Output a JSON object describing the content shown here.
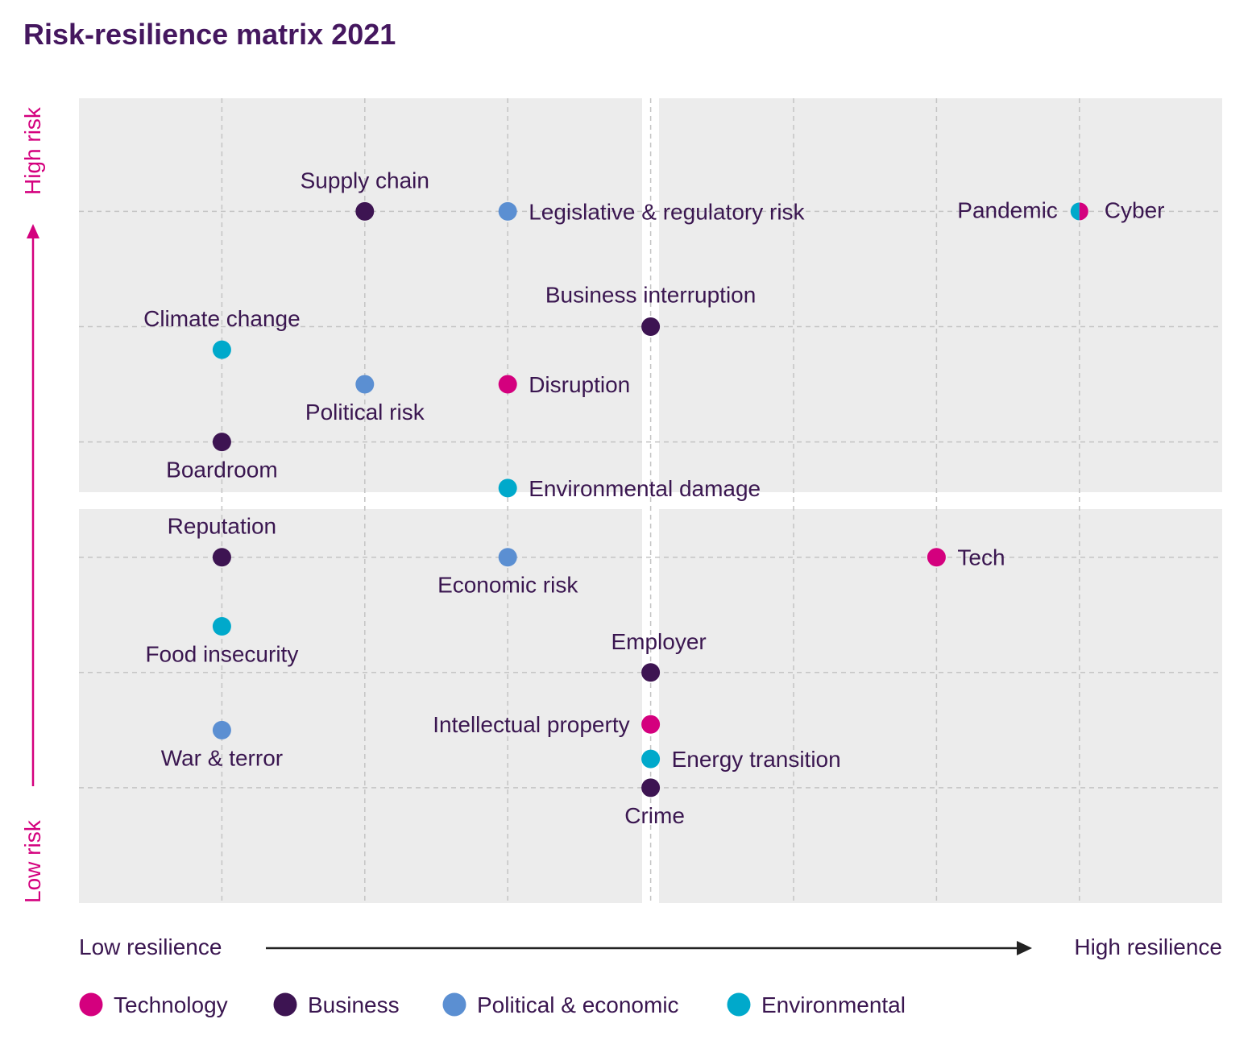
{
  "chart_data": {
    "type": "scatter",
    "title": "Risk-resilience matrix 2021",
    "xlabel_low": "Low resilience",
    "xlabel_high": "High resilience",
    "ylabel_low": "Low risk",
    "ylabel_high": "High risk",
    "xlim": [
      0,
      8
    ],
    "ylim": [
      0,
      7
    ],
    "grid": true,
    "legend_placement": "bottom",
    "colors": {
      "Technology": "#d4007e",
      "Business": "#3d1452",
      "Political & economic": "#5b8fd2",
      "Environmental": "#00a9cb"
    },
    "legend": [
      "Technology",
      "Business",
      "Political & economic",
      "Environmental"
    ],
    "points": [
      {
        "label": "Supply chain",
        "category": "Business",
        "x": 2,
        "y": 6
      },
      {
        "label": "Legislative & regulatory risk",
        "category": "Political & economic",
        "x": 3,
        "y": 6
      },
      {
        "label": "Pandemic",
        "category": "Environmental",
        "x": 7,
        "y": 6
      },
      {
        "label": "Cyber",
        "category": "Technology",
        "x": 7,
        "y": 6
      },
      {
        "label": "Business interruption",
        "category": "Business",
        "x": 4,
        "y": 5
      },
      {
        "label": "Climate change",
        "category": "Environmental",
        "x": 1,
        "y": 4.8
      },
      {
        "label": "Political risk",
        "category": "Political & economic",
        "x": 2,
        "y": 4.5
      },
      {
        "label": "Disruption",
        "category": "Technology",
        "x": 3,
        "y": 4.5
      },
      {
        "label": "Boardroom",
        "category": "Business",
        "x": 1,
        "y": 4
      },
      {
        "label": "Environmental damage",
        "category": "Environmental",
        "x": 3,
        "y": 3.6
      },
      {
        "label": "Reputation",
        "category": "Business",
        "x": 1,
        "y": 3
      },
      {
        "label": "Economic risk",
        "category": "Political & economic",
        "x": 3,
        "y": 3
      },
      {
        "label": "Tech",
        "category": "Technology",
        "x": 6,
        "y": 3
      },
      {
        "label": "Food insecurity",
        "category": "Environmental",
        "x": 1,
        "y": 2.4
      },
      {
        "label": "Employer",
        "category": "Business",
        "x": 4,
        "y": 2
      },
      {
        "label": "Intellectual property",
        "category": "Technology",
        "x": 4,
        "y": 1.55
      },
      {
        "label": "War & terror",
        "category": "Political & economic",
        "x": 1,
        "y": 1.5
      },
      {
        "label": "Energy transition",
        "category": "Environmental",
        "x": 4,
        "y": 1.25
      },
      {
        "label": "Crime",
        "category": "Business",
        "x": 4,
        "y": 1
      }
    ]
  }
}
